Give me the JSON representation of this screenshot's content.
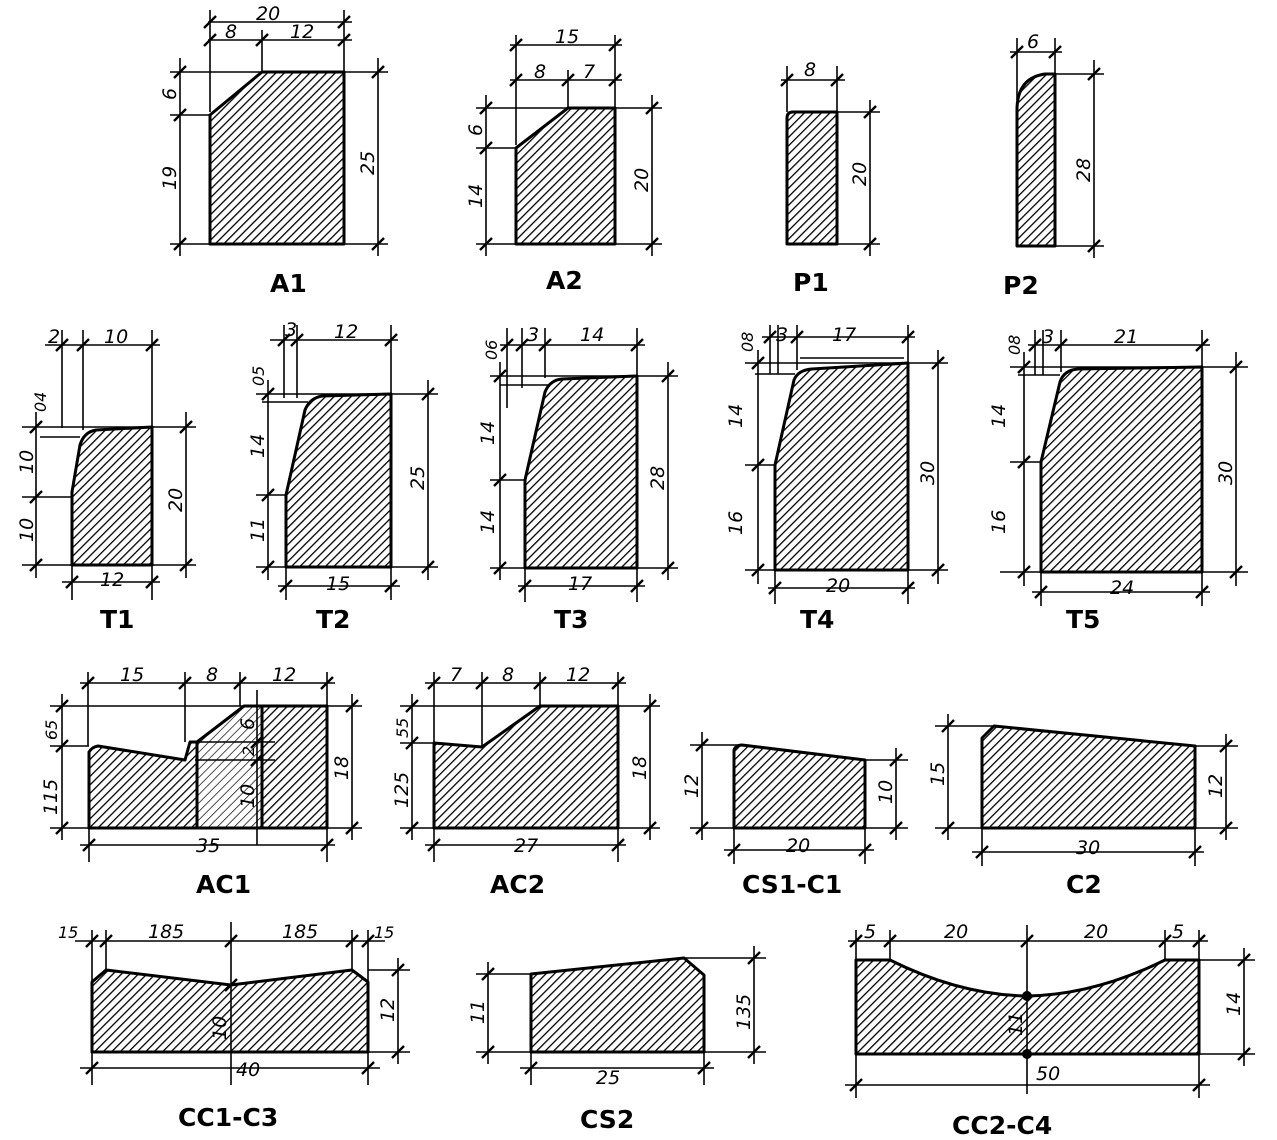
{
  "sections": {
    "A1": {
      "label": "A1",
      "dims": [
        "20",
        "8",
        "12",
        "6",
        "19",
        "25"
      ]
    },
    "A2": {
      "label": "A2",
      "dims": [
        "15",
        "8",
        "7",
        "6",
        "14",
        "20"
      ]
    },
    "P1": {
      "label": "P1",
      "dims": [
        "8",
        "20"
      ]
    },
    "P2": {
      "label": "P2",
      "dims": [
        "6",
        "28"
      ]
    },
    "T1": {
      "label": "T1",
      "dims": [
        "2",
        "10",
        "04",
        "10",
        "10",
        "20",
        "12"
      ]
    },
    "T2": {
      "label": "T2",
      "dims": [
        "3",
        "12",
        "05",
        "14",
        "11",
        "25",
        "15"
      ]
    },
    "T3": {
      "label": "T3",
      "dims": [
        "06",
        "3",
        "14",
        "14",
        "14",
        "28",
        "17"
      ]
    },
    "T4": {
      "label": "T4",
      "dims": [
        "08",
        "3",
        "17",
        "14",
        "16",
        "30",
        "20"
      ]
    },
    "T5": {
      "label": "T5",
      "dims": [
        "08",
        "3",
        "21",
        "14",
        "16",
        "30",
        "24"
      ]
    },
    "AC1": {
      "label": "AC1",
      "dims": [
        "15",
        "8",
        "12",
        "65",
        "115",
        "6",
        "2",
        "10",
        "18",
        "35"
      ]
    },
    "AC2": {
      "label": "AC2",
      "dims": [
        "7",
        "8",
        "12",
        "55",
        "125",
        "18",
        "27"
      ]
    },
    "CS1C1": {
      "label": "CS1-C1",
      "dims": [
        "12",
        "10",
        "20"
      ]
    },
    "C2": {
      "label": "C2",
      "dims": [
        "15",
        "12",
        "30"
      ]
    },
    "CC1C3": {
      "label": "CC1-C3",
      "dims": [
        "15",
        "185",
        "185",
        "15",
        "10",
        "12",
        "40"
      ]
    },
    "CS2": {
      "label": "CS2",
      "dims": [
        "11",
        "135",
        "25"
      ]
    },
    "CC2C4": {
      "label": "CC2-C4",
      "dims": [
        "5",
        "20",
        "20",
        "5",
        "11",
        "14",
        "50"
      ]
    }
  }
}
